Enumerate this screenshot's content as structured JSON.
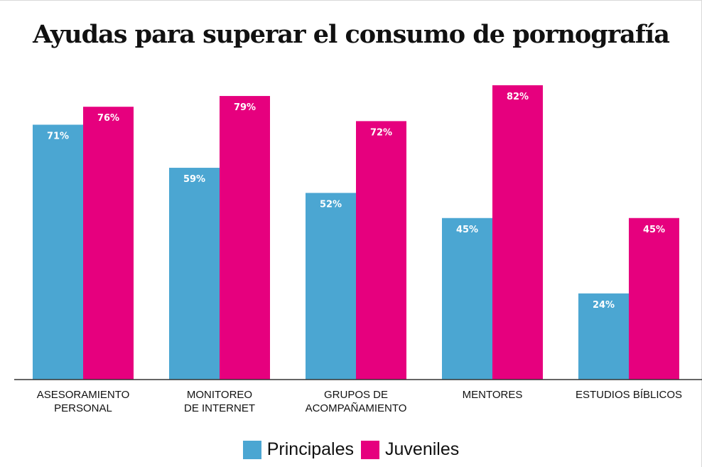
{
  "chart_data": {
    "type": "bar",
    "title": "Ayudas para superar el consumo de pornografía",
    "categories": [
      [
        "ASESORAMIENTO",
        "PERSONAL"
      ],
      [
        "MONITOREO",
        "DE INTERNET"
      ],
      [
        "GRUPOS DE",
        "ACOMPAÑAMIENTO"
      ],
      [
        "MENTORES"
      ],
      [
        "ESTUDIOS BÍBLICOS"
      ]
    ],
    "series": [
      {
        "name": "Principales",
        "color": "#4ba6d2",
        "values": [
          71,
          59,
          52,
          45,
          24
        ],
        "labels": [
          "71%",
          "59%",
          "52%",
          "45%",
          "24%"
        ]
      },
      {
        "name": "Juveniles",
        "color": "#e6007e",
        "values": [
          76,
          79,
          72,
          82,
          45
        ],
        "labels": [
          "76%",
          "79%",
          "72%",
          "82%",
          "45%"
        ]
      }
    ],
    "ylim": [
      0,
      100
    ],
    "grid": false,
    "legend_position": "bottom",
    "xlabel": "",
    "ylabel": ""
  }
}
